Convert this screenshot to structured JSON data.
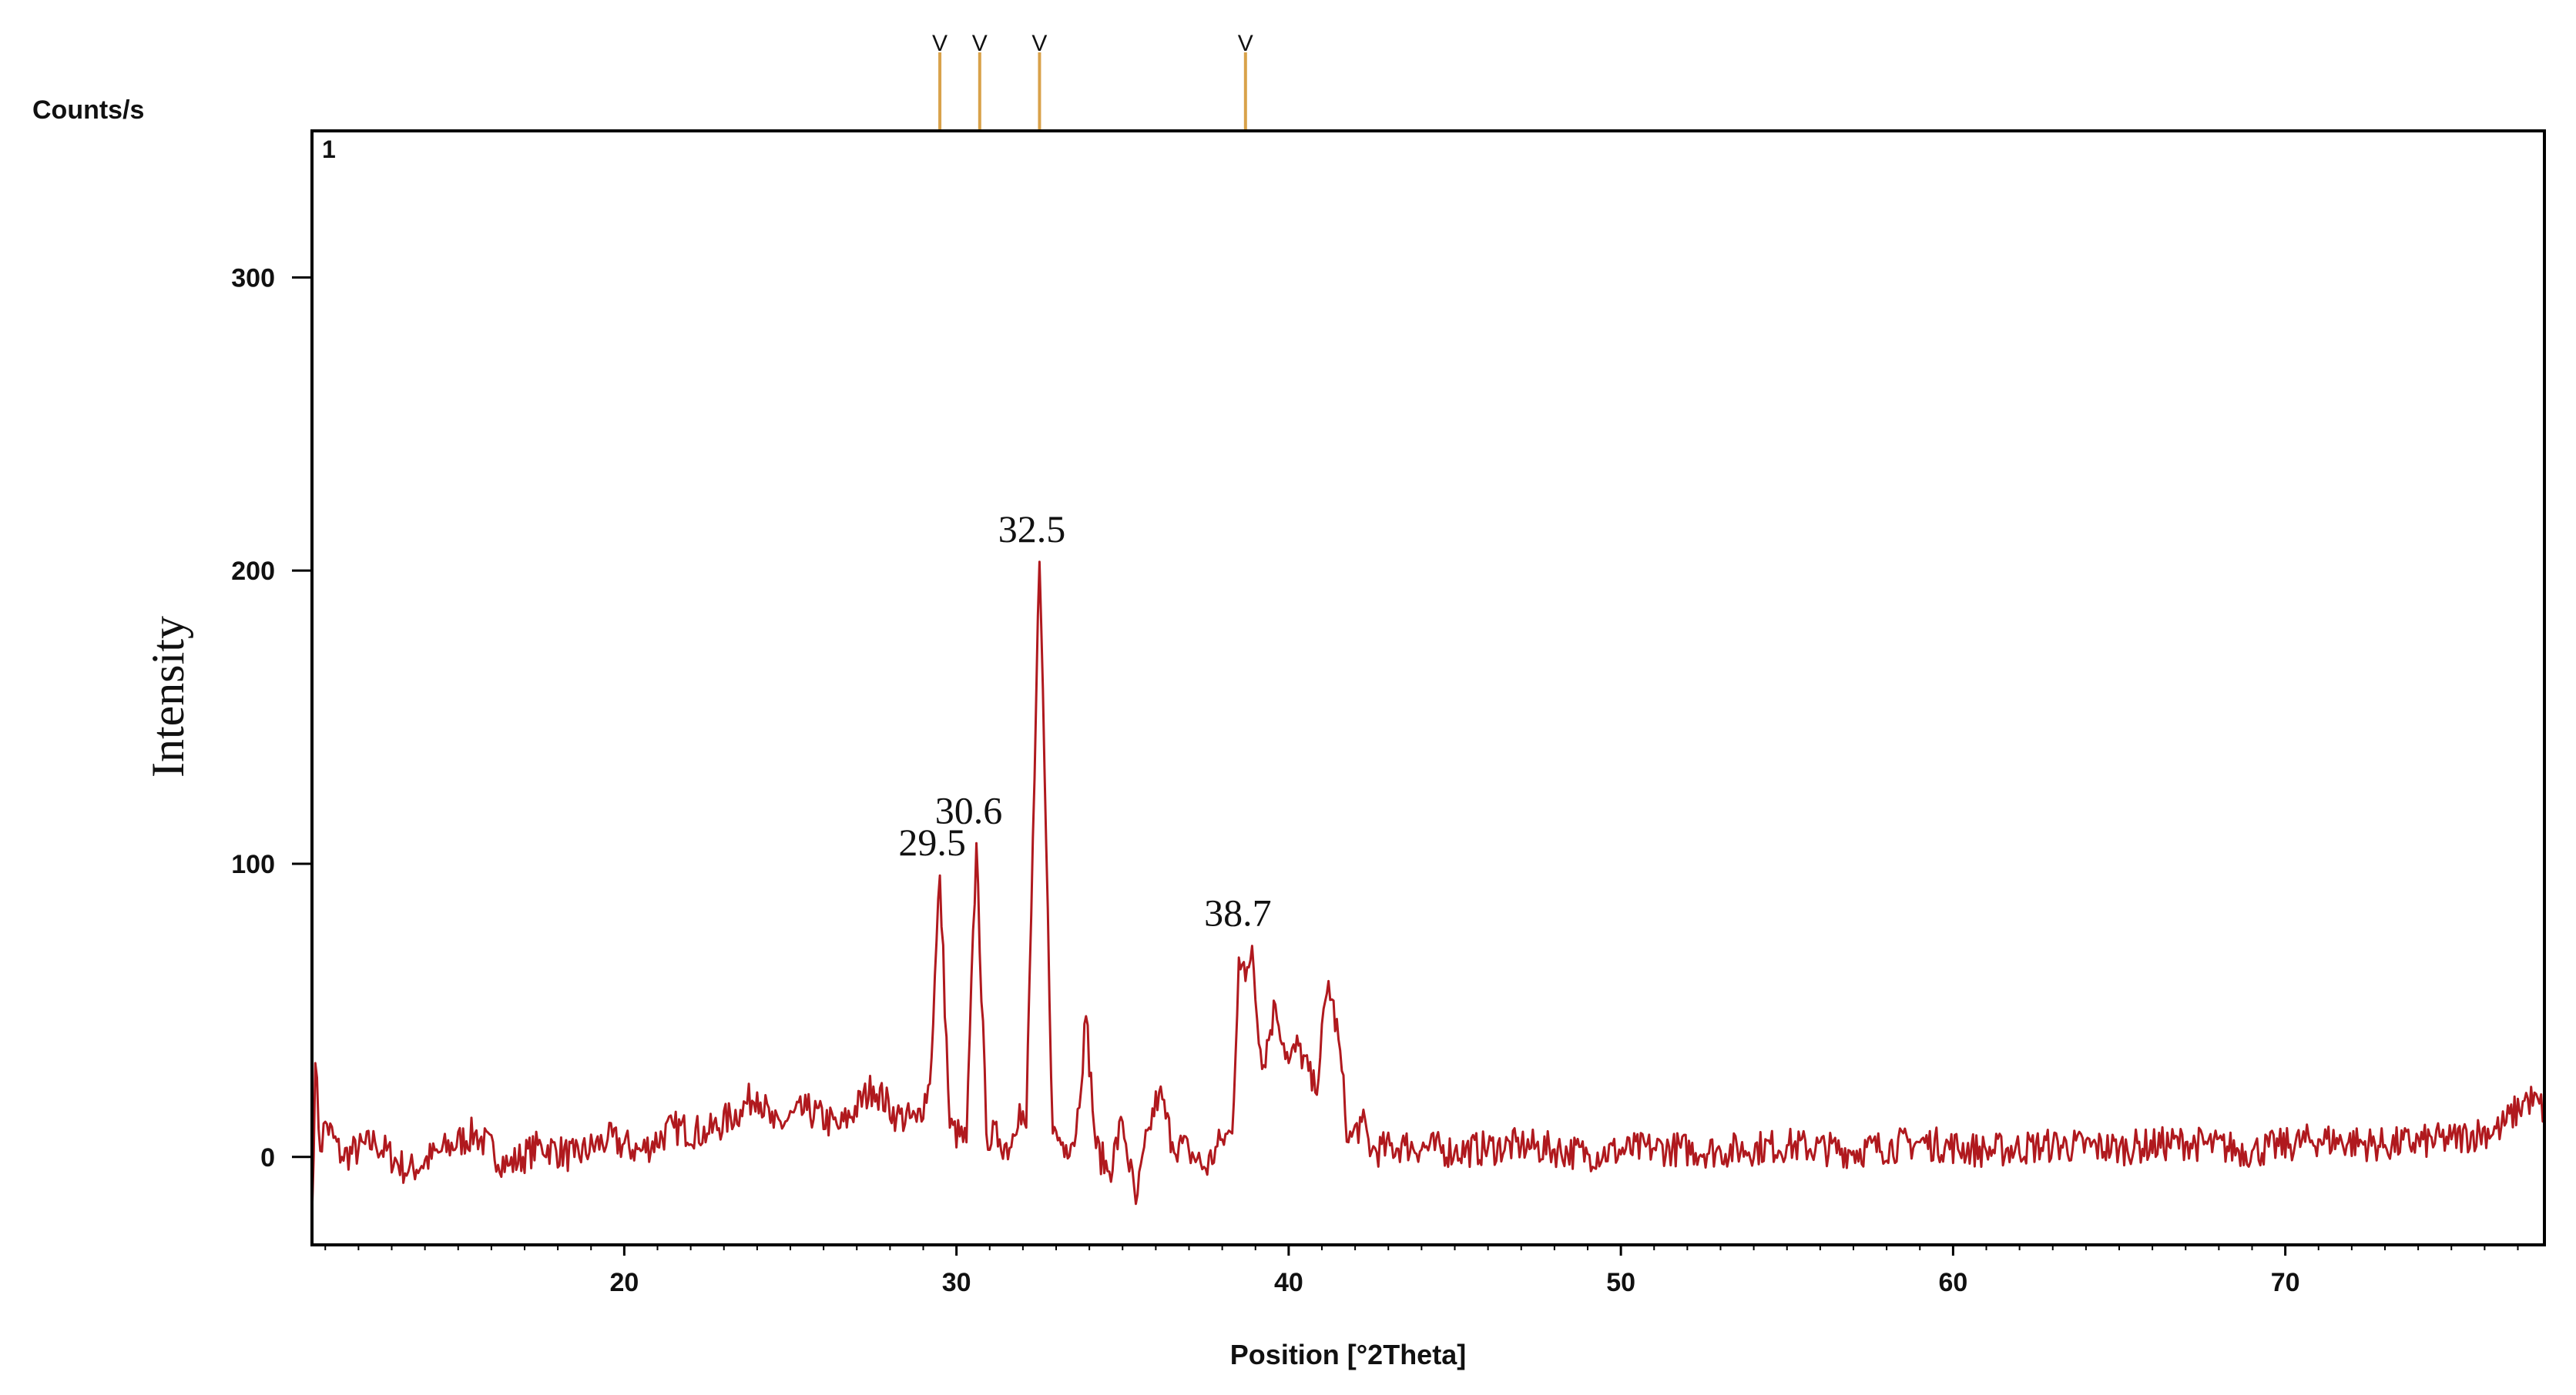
{
  "chart_data": {
    "type": "line",
    "y_unit_label": "Counts/s",
    "ylabel": "Intensity",
    "xlabel": "Position [°2Theta]",
    "panel_number": "1",
    "xlim": [
      10.6,
      77.8
    ],
    "ylim": [
      -30,
      350
    ],
    "x_ticks": [
      20,
      30,
      40,
      50,
      60,
      70
    ],
    "y_ticks": [
      0,
      100,
      200,
      300
    ],
    "grid": false,
    "colors": {
      "line": "#b0191e",
      "reference_marker": "#d9a24a",
      "frame": "#000000"
    },
    "reference_markers": [
      {
        "x": 29.5,
        "label": "V"
      },
      {
        "x": 30.7,
        "label": "V"
      },
      {
        "x": 32.5,
        "label": "V"
      },
      {
        "x": 38.7,
        "label": "V"
      }
    ],
    "peak_annotations": [
      {
        "text": "29.5",
        "x": 29.5,
        "y": 96
      },
      {
        "text": "30.6",
        "x": 30.6,
        "y": 107
      },
      {
        "text": "32.5",
        "x": 32.5,
        "y": 203
      },
      {
        "text": "38.7",
        "x": 38.7,
        "y": 72
      }
    ],
    "series": [
      {
        "noise_amplitude": 6,
        "points": [
          [
            10.6,
            -20
          ],
          [
            10.7,
            32
          ],
          [
            10.85,
            2
          ],
          [
            11.0,
            12
          ],
          [
            11.5,
            0
          ],
          [
            12.5,
            5
          ],
          [
            13.5,
            -5
          ],
          [
            14.5,
            2
          ],
          [
            15.5,
            8
          ],
          [
            16.5,
            -3
          ],
          [
            17.5,
            4
          ],
          [
            18.5,
            0
          ],
          [
            19.5,
            6
          ],
          [
            20.5,
            2
          ],
          [
            21.5,
            10
          ],
          [
            22.5,
            8
          ],
          [
            23.5,
            16
          ],
          [
            24.0,
            22
          ],
          [
            24.5,
            10
          ],
          [
            25.5,
            16
          ],
          [
            26.5,
            10
          ],
          [
            27.5,
            24
          ],
          [
            28.2,
            14
          ],
          [
            28.8,
            12
          ],
          [
            29.2,
            25
          ],
          [
            29.5,
            96
          ],
          [
            29.8,
            10
          ],
          [
            30.3,
            5
          ],
          [
            30.6,
            107
          ],
          [
            30.9,
            8
          ],
          [
            31.3,
            6
          ],
          [
            31.6,
            3
          ],
          [
            31.9,
            18
          ],
          [
            32.1,
            10
          ],
          [
            32.5,
            203
          ],
          [
            32.9,
            8
          ],
          [
            33.3,
            4
          ],
          [
            33.6,
            8
          ],
          [
            33.9,
            48
          ],
          [
            34.2,
            3
          ],
          [
            34.6,
            -5
          ],
          [
            35.0,
            12
          ],
          [
            35.4,
            -16
          ],
          [
            35.8,
            10
          ],
          [
            36.1,
            22
          ],
          [
            36.5,
            5
          ],
          [
            37.0,
            2
          ],
          [
            37.5,
            -4
          ],
          [
            38.0,
            6
          ],
          [
            38.3,
            8
          ],
          [
            38.5,
            68
          ],
          [
            38.7,
            60
          ],
          [
            38.9,
            72
          ],
          [
            39.2,
            30
          ],
          [
            39.6,
            52
          ],
          [
            40.0,
            32
          ],
          [
            40.3,
            38
          ],
          [
            40.8,
            22
          ],
          [
            41.2,
            60
          ],
          [
            41.5,
            40
          ],
          [
            41.8,
            5
          ],
          [
            42.2,
            12
          ],
          [
            42.5,
            2
          ],
          [
            43.5,
            4
          ],
          [
            45.0,
            2
          ],
          [
            47.0,
            4
          ],
          [
            49.0,
            1
          ],
          [
            51.0,
            3
          ],
          [
            53.0,
            2
          ],
          [
            55.0,
            4
          ],
          [
            57.0,
            2
          ],
          [
            59.0,
            5
          ],
          [
            61.0,
            2
          ],
          [
            63.0,
            4
          ],
          [
            65.0,
            3
          ],
          [
            67.0,
            5
          ],
          [
            69.0,
            2
          ],
          [
            71.0,
            6
          ],
          [
            73.0,
            4
          ],
          [
            75.0,
            6
          ],
          [
            76.5,
            10
          ],
          [
            77.3,
            20
          ],
          [
            77.8,
            16
          ]
        ]
      }
    ]
  }
}
